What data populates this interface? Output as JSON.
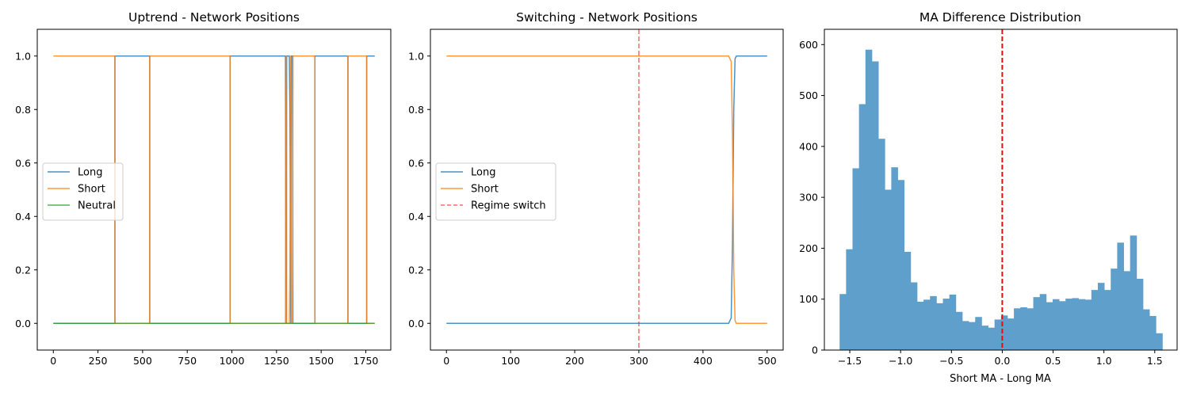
{
  "chart_data": [
    {
      "type": "line",
      "title": "Uptrend - Network Positions",
      "xlabel": "",
      "ylabel": "",
      "xlim": [
        -90,
        1890
      ],
      "ylim": [
        -0.1,
        1.1
      ],
      "xticks": [
        0,
        250,
        500,
        750,
        1000,
        1250,
        1500,
        1750
      ],
      "yticks": [
        0.0,
        0.2,
        0.4,
        0.6,
        0.8,
        1.0
      ],
      "legend_position": "center-left",
      "grid": false,
      "series": [
        {
          "name": "Long",
          "color": "#1f77b4",
          "points": [
            [
              0,
              0
            ],
            [
              345,
              0
            ],
            [
              345,
              1
            ],
            [
              540,
              1
            ],
            [
              540,
              0
            ],
            [
              990,
              0
            ],
            [
              990,
              1
            ],
            [
              1300,
              1
            ],
            [
              1302,
              0.25
            ],
            [
              1305,
              0
            ],
            [
              1307,
              1
            ],
            [
              1322,
              1
            ],
            [
              1325,
              0.8
            ],
            [
              1330,
              0
            ],
            [
              1333,
              1
            ],
            [
              1340,
              1
            ],
            [
              1342,
              0
            ],
            [
              1465,
              0
            ],
            [
              1465,
              1
            ],
            [
              1650,
              1
            ],
            [
              1650,
              0
            ],
            [
              1755,
              0
            ],
            [
              1755,
              1
            ],
            [
              1800,
              1
            ]
          ]
        },
        {
          "name": "Short",
          "color": "#ff7f0e",
          "points": [
            [
              0,
              1
            ],
            [
              345,
              1
            ],
            [
              345,
              0
            ],
            [
              540,
              0
            ],
            [
              540,
              1
            ],
            [
              990,
              1
            ],
            [
              990,
              0
            ],
            [
              1300,
              0
            ],
            [
              1302,
              0.75
            ],
            [
              1305,
              1
            ],
            [
              1307,
              0
            ],
            [
              1322,
              0
            ],
            [
              1325,
              0.2
            ],
            [
              1330,
              1
            ],
            [
              1333,
              0
            ],
            [
              1340,
              0
            ],
            [
              1342,
              1
            ],
            [
              1465,
              1
            ],
            [
              1465,
              0
            ],
            [
              1650,
              0
            ],
            [
              1650,
              1
            ],
            [
              1755,
              1
            ],
            [
              1755,
              0
            ],
            [
              1800,
              0
            ]
          ]
        },
        {
          "name": "Neutral",
          "color": "#2ca02c",
          "points": [
            [
              0,
              0
            ],
            [
              1800,
              0
            ]
          ]
        }
      ]
    },
    {
      "type": "line",
      "title": "Switching - Network Positions",
      "xlabel": "",
      "ylabel": "",
      "xlim": [
        -25,
        525
      ],
      "ylim": [
        -0.1,
        1.1
      ],
      "xticks": [
        0,
        100,
        200,
        300,
        400,
        500
      ],
      "yticks": [
        0.0,
        0.2,
        0.4,
        0.6,
        0.8,
        1.0
      ],
      "legend_position": "center-left",
      "grid": false,
      "series": [
        {
          "name": "Long",
          "color": "#1f77b4",
          "points": [
            [
              0,
              0
            ],
            [
              440,
              0
            ],
            [
              444,
              0.02
            ],
            [
              446,
              0.3
            ],
            [
              448,
              0.8
            ],
            [
              450,
              0.99
            ],
            [
              452,
              1
            ],
            [
              500,
              1
            ]
          ]
        },
        {
          "name": "Short",
          "color": "#ff7f0e",
          "points": [
            [
              0,
              1
            ],
            [
              440,
              1
            ],
            [
              444,
              0.98
            ],
            [
              446,
              0.7
            ],
            [
              448,
              0.2
            ],
            [
              450,
              0.01
            ],
            [
              452,
              0
            ],
            [
              500,
              0
            ]
          ]
        }
      ],
      "vlines": [
        {
          "name": "Regime switch",
          "x": 300,
          "color": "#ff6b6b"
        }
      ]
    },
    {
      "type": "bar",
      "title": "MA Difference Distribution",
      "xlabel": "Short MA - Long MA",
      "ylabel": "",
      "xlim": [
        -1.75,
        1.72
      ],
      "ylim": [
        0,
        630
      ],
      "xticks": [
        -1.5,
        -1.0,
        -0.5,
        0.0,
        0.5,
        1.0,
        1.5
      ],
      "xtick_labels": [
        "−1.5",
        "−1.0",
        "−0.5",
        "0.0",
        "0.5",
        "1.0",
        "1.5"
      ],
      "yticks": [
        0,
        100,
        200,
        300,
        400,
        500,
        600
      ],
      "bin_start": -1.6,
      "bin_width": 0.0635,
      "color": "#5f9fcb",
      "values": [
        110,
        198,
        357,
        483,
        590,
        567,
        415,
        315,
        359,
        334,
        193,
        133,
        95,
        99,
        106,
        92,
        101,
        109,
        75,
        57,
        55,
        65,
        48,
        44,
        60,
        68,
        62,
        82,
        84,
        82,
        104,
        110,
        94,
        100,
        96,
        101,
        102,
        100,
        99,
        118,
        132,
        118,
        160,
        211,
        155,
        225,
        140,
        80,
        67,
        33
      ],
      "vlines": [
        {
          "x": 0.0,
          "color": "#dd1111"
        }
      ]
    }
  ]
}
